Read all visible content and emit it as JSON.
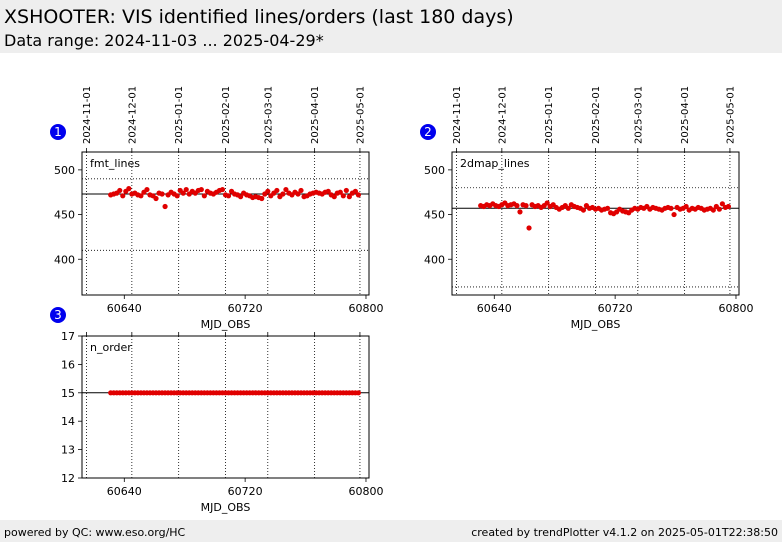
{
  "header": {
    "title": "XSHOOTER: VIS identified lines/orders (last 180 days)",
    "subtitle": "Data range: 2024-11-03 ... 2025-04-29*"
  },
  "footer": {
    "left": "powered by QC: www.eso.org/HC",
    "right": "created by trendPlotter v4.1.2 on 2025-05-01T22:38:50"
  },
  "chart_data": [
    {
      "type": "scatter",
      "panel": "1",
      "annotation": "fmt_lines",
      "xlabel": "MJD_OBS",
      "xlim": [
        60612,
        60802
      ],
      "ylim": [
        360,
        520
      ],
      "xticks": [
        60640,
        60720,
        60800
      ],
      "yticks": [
        400,
        450,
        500
      ],
      "date_ticks": [
        {
          "label": "2024-11-01",
          "mjd": 60615
        },
        {
          "label": "2024-12-01",
          "mjd": 60645
        },
        {
          "label": "2025-01-01",
          "mjd": 60676
        },
        {
          "label": "2025-02-01",
          "mjd": 60707
        },
        {
          "label": "2025-03-01",
          "mjd": 60735
        },
        {
          "label": "2025-04-01",
          "mjd": 60766
        },
        {
          "label": "2025-05-01",
          "mjd": 60796
        }
      ],
      "reference_lines": {
        "median": 473,
        "limits": [
          490,
          410
        ]
      },
      "x": [
        60631,
        60633,
        60635,
        60637,
        60639,
        60641,
        60643,
        60645,
        60647,
        60649,
        60651,
        60653,
        60655,
        60657,
        60659,
        60661,
        60663,
        60665,
        60667,
        60669,
        60671,
        60673,
        60675,
        60677,
        60679,
        60681,
        60683,
        60685,
        60687,
        60689,
        60691,
        60693,
        60695,
        60697,
        60699,
        60701,
        60703,
        60705,
        60707,
        60709,
        60711,
        60713,
        60715,
        60717,
        60719,
        60721,
        60723,
        60725,
        60727,
        60729,
        60731,
        60733,
        60735,
        60737,
        60739,
        60741,
        60743,
        60745,
        60747,
        60749,
        60751,
        60753,
        60755,
        60757,
        60759,
        60761,
        60763,
        60765,
        60767,
        60769,
        60771,
        60773,
        60775,
        60777,
        60779,
        60781,
        60783,
        60785,
        60787,
        60789,
        60791,
        60793,
        60795
      ],
      "y": [
        472,
        473,
        474,
        477,
        471,
        476,
        479,
        473,
        474,
        472,
        471,
        475,
        478,
        472,
        471,
        468,
        474,
        473,
        459,
        472,
        475,
        473,
        471,
        477,
        474,
        478,
        473,
        476,
        474,
        477,
        478,
        471,
        476,
        474,
        473,
        475,
        477,
        478,
        472,
        471,
        476,
        473,
        472,
        470,
        474,
        472,
        471,
        469,
        470,
        469,
        468,
        473,
        476,
        471,
        474,
        477,
        470,
        473,
        478,
        474,
        472,
        475,
        473,
        477,
        470,
        471,
        473,
        474,
        475,
        474,
        473,
        475,
        476,
        472,
        470,
        474,
        475,
        471,
        477,
        470,
        474,
        476,
        472
      ]
    },
    {
      "type": "scatter",
      "panel": "2",
      "annotation": "2dmap_lines",
      "xlabel": "MJD_OBS",
      "xlim": [
        60612,
        60802
      ],
      "ylim": [
        360,
        520
      ],
      "xticks": [
        60640,
        60720,
        60800
      ],
      "yticks": [
        400,
        450,
        500
      ],
      "date_ticks": [
        {
          "label": "2024-11-01",
          "mjd": 60615
        },
        {
          "label": "2024-12-01",
          "mjd": 60645
        },
        {
          "label": "2025-01-01",
          "mjd": 60676
        },
        {
          "label": "2025-02-01",
          "mjd": 60707
        },
        {
          "label": "2025-03-01",
          "mjd": 60735
        },
        {
          "label": "2025-04-01",
          "mjd": 60766
        },
        {
          "label": "2025-05-01",
          "mjd": 60796
        }
      ],
      "reference_lines": {
        "median": 457,
        "limits": [
          480,
          369
        ]
      },
      "x": [
        60631,
        60633,
        60635,
        60637,
        60639,
        60641,
        60643,
        60645,
        60647,
        60649,
        60651,
        60653,
        60655,
        60657,
        60659,
        60661,
        60663,
        60665,
        60667,
        60669,
        60671,
        60673,
        60675,
        60677,
        60679,
        60681,
        60683,
        60685,
        60687,
        60689,
        60691,
        60693,
        60695,
        60697,
        60699,
        60701,
        60703,
        60705,
        60707,
        60709,
        60711,
        60713,
        60715,
        60717,
        60719,
        60721,
        60723,
        60725,
        60727,
        60729,
        60731,
        60733,
        60735,
        60737,
        60739,
        60741,
        60743,
        60745,
        60747,
        60749,
        60751,
        60753,
        60755,
        60757,
        60759,
        60761,
        60763,
        60765,
        60767,
        60769,
        60771,
        60773,
        60775,
        60777,
        60779,
        60781,
        60783,
        60785,
        60787,
        60789,
        60791,
        60793,
        60795
      ],
      "y": [
        460,
        459,
        461,
        460,
        462,
        460,
        459,
        461,
        463,
        460,
        461,
        462,
        460,
        453,
        461,
        460,
        435,
        461,
        459,
        460,
        458,
        460,
        463,
        459,
        461,
        458,
        456,
        458,
        460,
        457,
        461,
        459,
        458,
        457,
        455,
        460,
        457,
        458,
        456,
        457,
        455,
        456,
        457,
        452,
        451,
        453,
        456,
        454,
        453,
        452,
        455,
        457,
        456,
        458,
        457,
        459,
        456,
        458,
        457,
        456,
        455,
        457,
        458,
        457,
        450,
        458,
        456,
        457,
        459,
        455,
        457,
        456,
        458,
        457,
        455,
        456,
        457,
        455,
        459,
        456,
        462,
        458,
        459
      ]
    },
    {
      "type": "scatter",
      "panel": "3",
      "annotation": "n_order",
      "xlabel": "MJD_OBS",
      "xlim": [
        60612,
        60802
      ],
      "ylim": [
        12,
        17
      ],
      "xticks": [
        60640,
        60720,
        60800
      ],
      "yticks": [
        12,
        13,
        14,
        15,
        16,
        17
      ],
      "date_ticks": [
        {
          "label": "2024-11-01",
          "mjd": 60615
        },
        {
          "label": "2024-12-01",
          "mjd": 60645
        },
        {
          "label": "2025-01-01",
          "mjd": 60676
        },
        {
          "label": "2025-02-01",
          "mjd": 60707
        },
        {
          "label": "2025-03-01",
          "mjd": 60735
        },
        {
          "label": "2025-04-01",
          "mjd": 60766
        },
        {
          "label": "2025-05-01",
          "mjd": 60796
        }
      ],
      "reference_lines": {
        "median": 15,
        "limits": []
      },
      "x": [
        60631,
        60633,
        60635,
        60637,
        60639,
        60641,
        60643,
        60645,
        60647,
        60649,
        60651,
        60653,
        60655,
        60657,
        60659,
        60661,
        60663,
        60665,
        60667,
        60669,
        60671,
        60673,
        60675,
        60677,
        60679,
        60681,
        60683,
        60685,
        60687,
        60689,
        60691,
        60693,
        60695,
        60697,
        60699,
        60701,
        60703,
        60705,
        60707,
        60709,
        60711,
        60713,
        60715,
        60717,
        60719,
        60721,
        60723,
        60725,
        60727,
        60729,
        60731,
        60733,
        60735,
        60737,
        60739,
        60741,
        60743,
        60745,
        60747,
        60749,
        60751,
        60753,
        60755,
        60757,
        60759,
        60761,
        60763,
        60765,
        60767,
        60769,
        60771,
        60773,
        60775,
        60777,
        60779,
        60781,
        60783,
        60785,
        60787,
        60789,
        60791,
        60793,
        60795
      ],
      "y": [
        15,
        15,
        15,
        15,
        15,
        15,
        15,
        15,
        15,
        15,
        15,
        15,
        15,
        15,
        15,
        15,
        15,
        15,
        15,
        15,
        15,
        15,
        15,
        15,
        15,
        15,
        15,
        15,
        15,
        15,
        15,
        15,
        15,
        15,
        15,
        15,
        15,
        15,
        15,
        15,
        15,
        15,
        15,
        15,
        15,
        15,
        15,
        15,
        15,
        15,
        15,
        15,
        15,
        15,
        15,
        15,
        15,
        15,
        15,
        15,
        15,
        15,
        15,
        15,
        15,
        15,
        15,
        15,
        15,
        15,
        15,
        15,
        15,
        15,
        15,
        15,
        15,
        15,
        15,
        15,
        15,
        15,
        15
      ]
    }
  ]
}
